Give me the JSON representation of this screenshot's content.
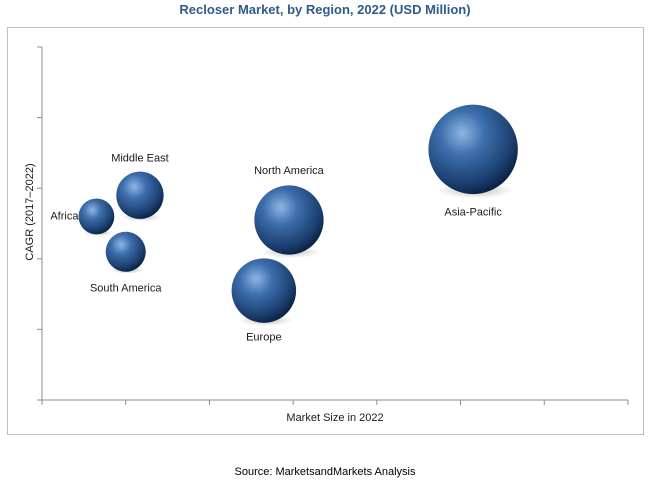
{
  "title": "Recloser Market, by Region, 2022 (USD Million)",
  "source": "Source: MarketsandMarkets Analysis",
  "colors": {
    "title": "#2f5b8c",
    "bubble_light": "#7fa8d6",
    "bubble_mid": "#3a6aa8",
    "bubble_dark": "#0f2c52"
  },
  "chart_data": {
    "type": "scatter",
    "title": "Recloser Market, by Region, 2022 (USD Million)",
    "xlabel": "Market Size in 2022",
    "ylabel": "CAGR (2017–2022)",
    "xlim": [
      0,
      7
    ],
    "ylim": [
      0,
      5
    ],
    "x_tick_count": 8,
    "y_tick_count": 6,
    "grid": false,
    "legend": "none",
    "series": [
      {
        "label": "Africa",
        "x": 0.65,
        "y": 2.6,
        "size": 0.8
      },
      {
        "label": "Middle East",
        "x": 1.17,
        "y": 2.9,
        "size": 1.4
      },
      {
        "label": "South America",
        "x": 1.0,
        "y": 2.1,
        "size": 1.0
      },
      {
        "label": "North America",
        "x": 2.95,
        "y": 2.55,
        "size": 3.0
      },
      {
        "label": "Europe",
        "x": 2.65,
        "y": 1.55,
        "size": 2.6
      },
      {
        "label": "Asia-Pacific",
        "x": 5.15,
        "y": 3.55,
        "size": 5.0
      }
    ]
  }
}
